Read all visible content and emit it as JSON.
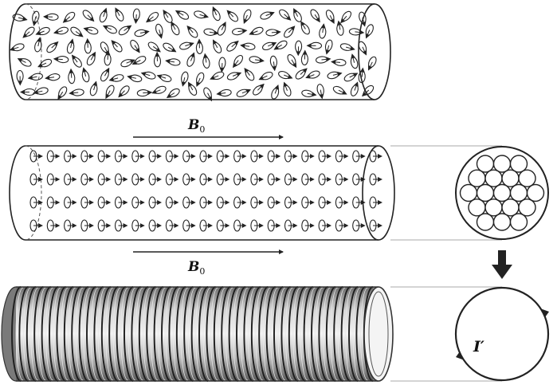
{
  "field_label_top": {
    "symbol": "B",
    "subscript": "0"
  },
  "field_label_bottom": {
    "symbol": "B",
    "subscript": "0"
  },
  "current_label": "I′",
  "panels": {
    "random": "random-orientation-cylinder",
    "aligned": "aligned-orientation-cylinder",
    "surface": "surface-current-cylinder"
  },
  "aligned_grid": {
    "rows": 4,
    "columns": 21
  },
  "cross_section_circles": 19,
  "colors": {
    "ink": "#222222",
    "background": "#ffffff",
    "shade": "#9a9a9a"
  }
}
